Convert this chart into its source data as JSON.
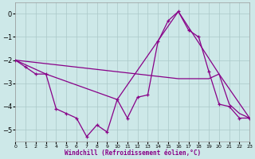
{
  "xlabel": "Windchill (Refroidissement éolien,°C)",
  "background_color": "#cde8e8",
  "grid_color": "#aac8c8",
  "line_color": "#880088",
  "xlim": [
    0,
    23
  ],
  "ylim": [
    -5.5,
    0.5
  ],
  "yticks": [
    0,
    -1,
    -2,
    -3,
    -4,
    -5
  ],
  "xticks": [
    0,
    1,
    2,
    3,
    4,
    5,
    6,
    7,
    8,
    9,
    10,
    11,
    12,
    13,
    14,
    15,
    16,
    17,
    18,
    19,
    20,
    21,
    22,
    23
  ],
  "series": [
    {
      "x": [
        0,
        1,
        2,
        3,
        4,
        5,
        6,
        7,
        8,
        9,
        10,
        11,
        12,
        13,
        14,
        15,
        16,
        17,
        18,
        19,
        20,
        21,
        22,
        23
      ],
      "y": [
        -2.0,
        -2.3,
        -2.6,
        -2.6,
        -4.1,
        -4.3,
        -4.5,
        -5.3,
        -4.8,
        -5.1,
        -3.7,
        -4.5,
        -3.6,
        -3.5,
        -1.2,
        -0.3,
        0.1,
        -0.7,
        -1.0,
        -2.5,
        -3.9,
        -4.0,
        -4.5,
        -4.5
      ],
      "marker": true,
      "linewidth": 0.9
    },
    {
      "x": [
        0,
        1,
        2,
        3,
        4,
        5,
        6,
        7,
        8,
        9,
        10,
        11,
        12,
        13,
        14,
        15,
        16,
        17,
        18,
        19,
        20,
        21,
        22,
        23
      ],
      "y": [
        -2.0,
        -2.05,
        -2.1,
        -2.15,
        -2.2,
        -2.25,
        -2.3,
        -2.35,
        -2.4,
        -2.45,
        -2.5,
        -2.55,
        -2.6,
        -2.65,
        -2.7,
        -2.75,
        -2.8,
        -2.8,
        -2.8,
        -2.8,
        -2.6,
        -3.9,
        -4.3,
        -4.5
      ],
      "marker": false,
      "linewidth": 0.9
    },
    {
      "x": [
        0,
        3,
        10,
        16,
        20,
        23
      ],
      "y": [
        -2.0,
        -2.6,
        -3.7,
        0.1,
        -2.6,
        -4.5
      ],
      "marker": false,
      "linewidth": 0.9
    }
  ]
}
